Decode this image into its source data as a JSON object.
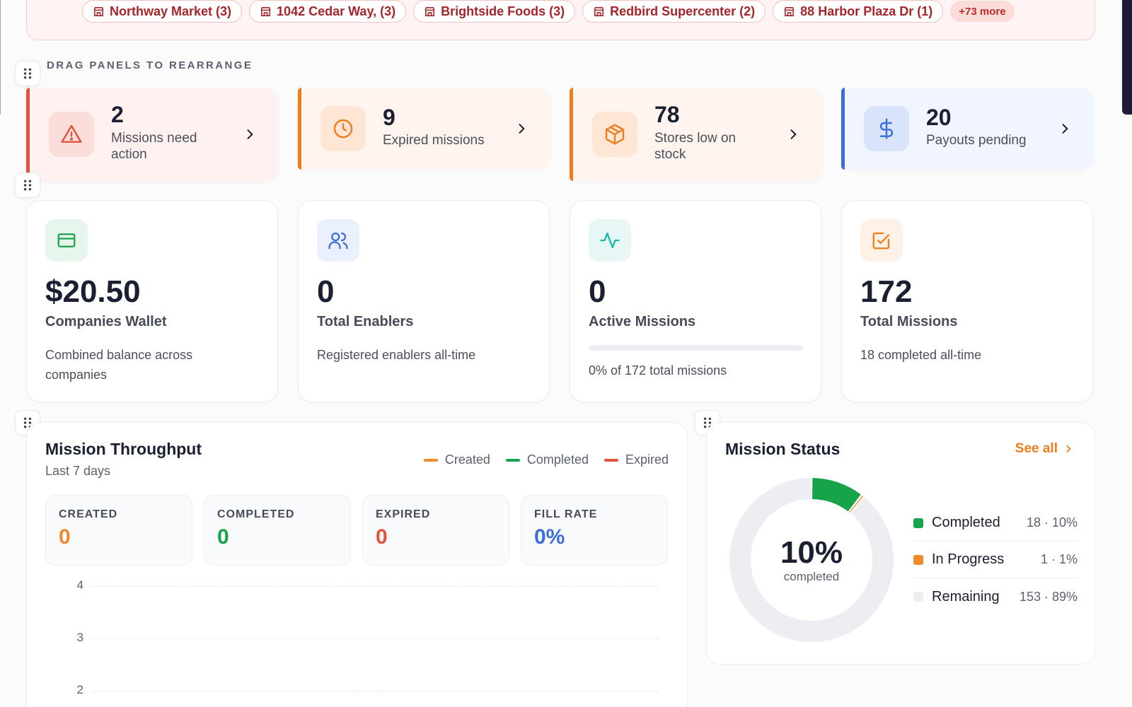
{
  "stores": {
    "chips": [
      {
        "label": "Northway Market (3)"
      },
      {
        "label": "1042 Cedar Way, (3)"
      },
      {
        "label": "Brightside Foods (3)"
      },
      {
        "label": "Redbird Supercenter (2)"
      },
      {
        "label": "88 Harbor Plaza Dr (1)"
      }
    ],
    "more_label": "+73 more"
  },
  "drag_label": "DRAG PANELS TO REARRANGE",
  "alerts": [
    {
      "value": "2",
      "label": "Missions need action",
      "color": "#e0533d",
      "bg": "#fff1f0",
      "icon": "warning-icon"
    },
    {
      "value": "9",
      "label": "Expired missions",
      "color": "#f07d1b",
      "bg": "#fff5ee",
      "icon": "clock-icon"
    },
    {
      "value": "78",
      "label": "Stores low on stock",
      "color": "#f07d1b",
      "bg": "#fff5ee",
      "icon": "box-icon"
    },
    {
      "value": "20",
      "label": "Payouts pending",
      "color": "#3b6fd8",
      "bg": "#f0f5ff",
      "icon": "dollar-icon"
    }
  ],
  "stats": [
    {
      "value": "$20.50",
      "title": "Companies Wallet",
      "desc": "Combined balance across companies",
      "icon": "wallet-icon",
      "color": "#16a34a",
      "bg": "#e7f6ec"
    },
    {
      "value": "0",
      "title": "Total Enablers",
      "desc": "Registered enablers all-time",
      "icon": "users-icon",
      "color": "#3b6fd8",
      "bg": "#eaf0fd"
    },
    {
      "value": "0",
      "title": "Active Missions",
      "desc": "0% of 172 total missions",
      "icon": "activity-icon",
      "color": "#15b8a6",
      "bg": "#e6f7f6",
      "progress": 0
    },
    {
      "value": "172",
      "title": "Total Missions",
      "desc": "18 completed all-time",
      "icon": "checkbox-icon",
      "color": "#f07d1b",
      "bg": "#fff1e6"
    }
  ],
  "throughput": {
    "title": "Mission Throughput",
    "subtitle": "Last 7 days",
    "legend": [
      {
        "name": "Created",
        "color": "#f08a2b"
      },
      {
        "name": "Completed",
        "color": "#16a34a"
      },
      {
        "name": "Expired",
        "color": "#e0533d"
      }
    ],
    "metrics": [
      {
        "label": "CREATED",
        "value": "0",
        "color": "#f08a2b"
      },
      {
        "label": "COMPLETED",
        "value": "0",
        "color": "#16a34a"
      },
      {
        "label": "EXPIRED",
        "value": "0",
        "color": "#e0533d"
      },
      {
        "label": "FILL RATE",
        "value": "0%",
        "color": "#3b6fd8"
      }
    ],
    "y_ticks": [
      "4",
      "3",
      "2"
    ]
  },
  "status": {
    "title": "Mission Status",
    "see_all": "See all",
    "center_pct": "10%",
    "center_label": "completed",
    "rows": [
      {
        "name": "Completed",
        "count": "18 · 10%",
        "color": "#16a34a",
        "value": 18
      },
      {
        "name": "In Progress",
        "count": "1 · 1%",
        "color": "#f08a2b",
        "value": 1
      },
      {
        "name": "Remaining",
        "count": "153 · 89%",
        "color": "#eceef2",
        "value": 153
      }
    ]
  }
}
